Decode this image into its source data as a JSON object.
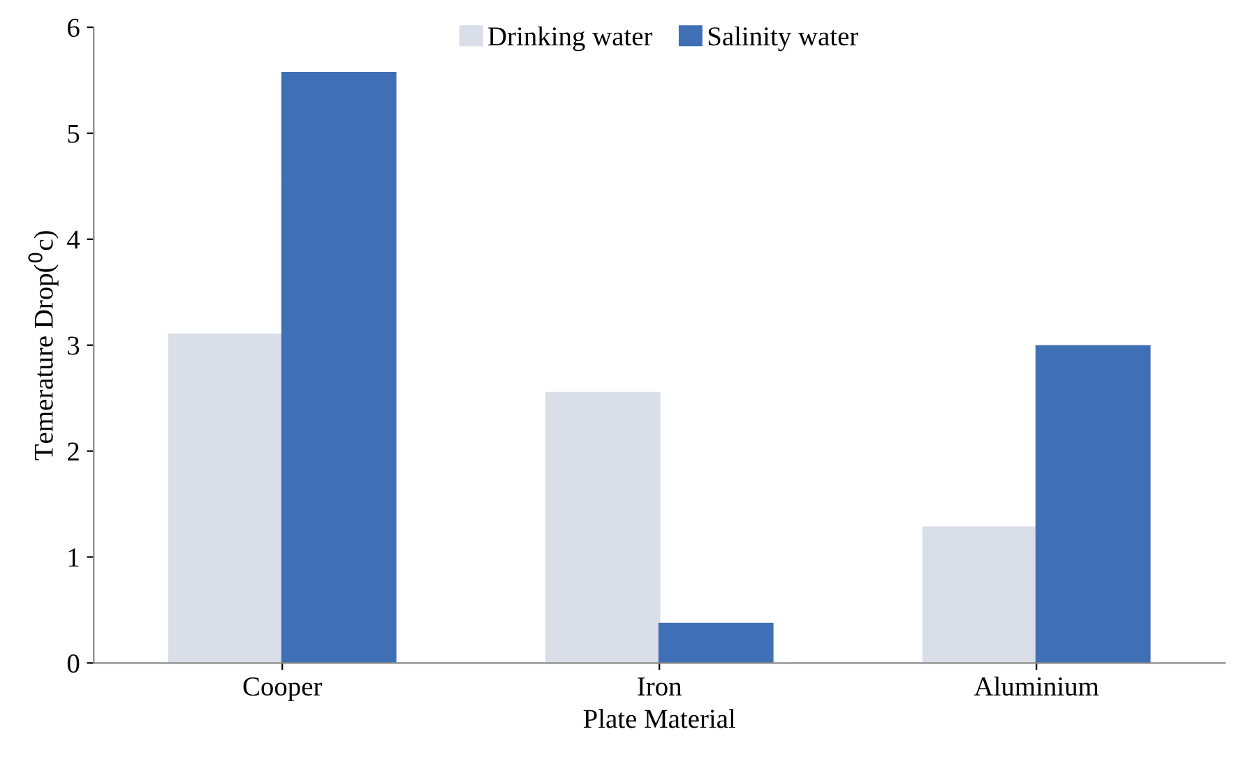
{
  "chart_data": {
    "type": "bar",
    "xlabel": "Plate Material",
    "ylabel": "Temerature Drop($^{0}$c)",
    "categories": [
      "Cooper",
      "Iron",
      "Aluminium"
    ],
    "series": [
      {
        "name": "Drinking water",
        "color": "#d9dee8",
        "values": [
          3.1,
          2.55,
          1.28
        ]
      },
      {
        "name": "Salinity water",
        "color": "#3f6fb5",
        "values": [
          5.57,
          0.37,
          2.99
        ]
      }
    ],
    "ylim": [
      0,
      6
    ],
    "yticks": [
      0,
      1,
      2,
      3,
      4,
      5,
      6
    ],
    "grid": false,
    "legend": "top"
  }
}
